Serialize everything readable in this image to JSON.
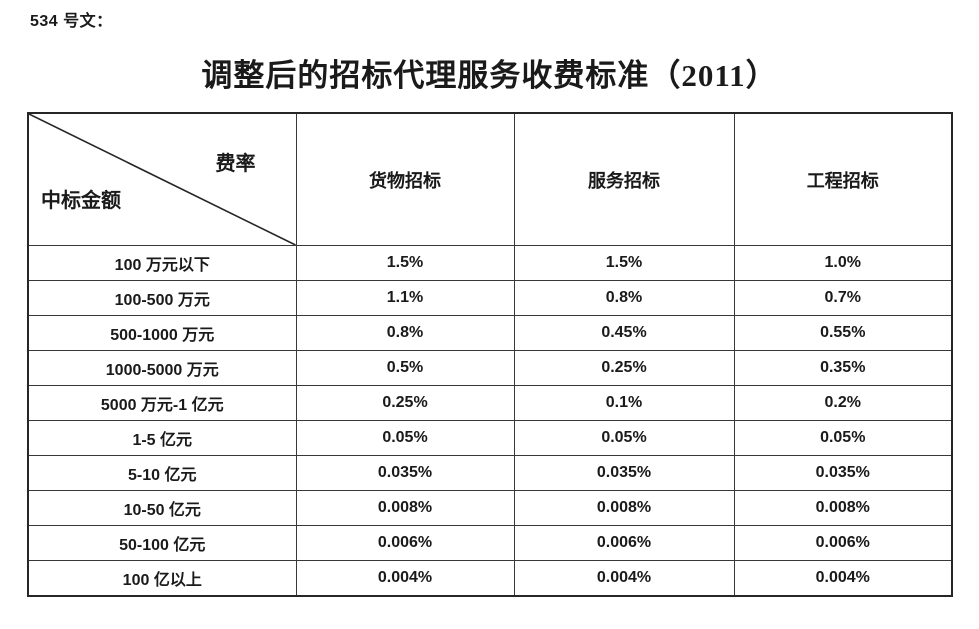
{
  "document": {
    "doc_number_label": "534 号文：",
    "title": "调整后的招标代理服务收费标准（2011）"
  },
  "table": {
    "corner": {
      "top_right_label": "费率",
      "bottom_left_label": "中标金额"
    },
    "columns": [
      "货物招标",
      "服务招标",
      "工程招标"
    ],
    "rows": [
      {
        "amount": "100 万元以下",
        "values": [
          "1.5%",
          "1.5%",
          "1.0%"
        ]
      },
      {
        "amount": "100-500 万元",
        "values": [
          "1.1%",
          "0.8%",
          "0.7%"
        ]
      },
      {
        "amount": "500-1000 万元",
        "values": [
          "0.8%",
          "0.45%",
          "0.55%"
        ]
      },
      {
        "amount": "1000-5000 万元",
        "values": [
          "0.5%",
          "0.25%",
          "0.35%"
        ]
      },
      {
        "amount": "5000 万元-1 亿元",
        "values": [
          "0.25%",
          "0.1%",
          "0.2%"
        ]
      },
      {
        "amount": "1-5 亿元",
        "values": [
          "0.05%",
          "0.05%",
          "0.05%"
        ]
      },
      {
        "amount": "5-10 亿元",
        "values": [
          "0.035%",
          "0.035%",
          "0.035%"
        ]
      },
      {
        "amount": "10-50 亿元",
        "values": [
          "0.008%",
          "0.008%",
          "0.008%"
        ]
      },
      {
        "amount": "50-100 亿元",
        "values": [
          "0.006%",
          "0.006%",
          "0.006%"
        ]
      },
      {
        "amount": "100 亿以上",
        "values": [
          "0.004%",
          "0.004%",
          "0.004%"
        ]
      }
    ]
  },
  "colors": {
    "background": "#ffffff",
    "text": "#1a1a1a",
    "outer_border": "#262626",
    "inner_border": "#383838"
  }
}
